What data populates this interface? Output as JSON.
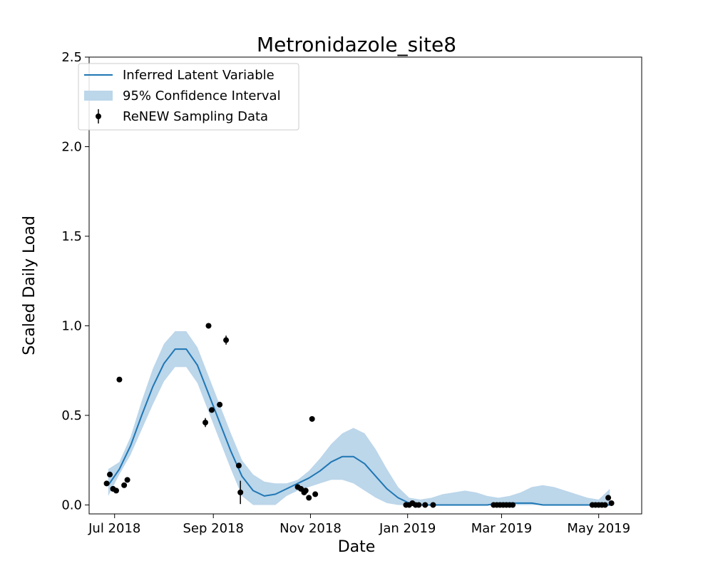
{
  "chart_data": {
    "type": "line",
    "title": "Metronidazole_site8",
    "xlabel": "Date",
    "ylabel": "Scaled Daily Load",
    "xlim": [
      "2018-06-15",
      "2019-05-28"
    ],
    "ylim": [
      -0.05,
      2.5
    ],
    "x_ticks": [
      {
        "date": "2018-07-01",
        "label": "Jul 2018"
      },
      {
        "date": "2018-09-01",
        "label": "Sep 2018"
      },
      {
        "date": "2018-11-01",
        "label": "Nov 2018"
      },
      {
        "date": "2019-01-01",
        "label": "Jan 2019"
      },
      {
        "date": "2019-03-01",
        "label": "Mar 2019"
      },
      {
        "date": "2019-05-01",
        "label": "May 2019"
      }
    ],
    "y_ticks": [
      {
        "value": 0.0,
        "label": "0.0"
      },
      {
        "value": 0.5,
        "label": "0.5"
      },
      {
        "value": 1.0,
        "label": "1.0"
      },
      {
        "value": 1.5,
        "label": "1.5"
      },
      {
        "value": 2.0,
        "label": "2.0"
      },
      {
        "value": 2.5,
        "label": "2.5"
      }
    ],
    "grid": false,
    "legend": {
      "placement": "upper-left",
      "entries": [
        "Inferred Latent Variable",
        "95% Confidence Interval",
        "ReNEW Sampling Data"
      ]
    },
    "colors": {
      "line": "#1f77b4",
      "band": "#bcd6ea",
      "points": "#000000"
    },
    "series": [
      {
        "name": "Inferred Latent Variable",
        "type": "line",
        "x": [
          "2018-06-27",
          "2018-07-04",
          "2018-07-11",
          "2018-07-18",
          "2018-07-25",
          "2018-08-01",
          "2018-08-08",
          "2018-08-15",
          "2018-08-22",
          "2018-08-29",
          "2018-09-05",
          "2018-09-12",
          "2018-09-19",
          "2018-09-26",
          "2018-10-03",
          "2018-10-10",
          "2018-10-17",
          "2018-10-24",
          "2018-10-31",
          "2018-11-07",
          "2018-11-14",
          "2018-11-21",
          "2018-11-28",
          "2018-12-05",
          "2018-12-12",
          "2018-12-19",
          "2018-12-26",
          "2019-01-02",
          "2019-01-09",
          "2019-01-16",
          "2019-01-23",
          "2019-01-30",
          "2019-02-06",
          "2019-02-13",
          "2019-02-20",
          "2019-02-27",
          "2019-03-06",
          "2019-03-13",
          "2019-03-20",
          "2019-03-27",
          "2019-04-03",
          "2019-04-10",
          "2019-04-17",
          "2019-04-24",
          "2019-05-01",
          "2019-05-08"
        ],
        "y": [
          0.11,
          0.2,
          0.33,
          0.5,
          0.66,
          0.79,
          0.87,
          0.87,
          0.78,
          0.62,
          0.46,
          0.3,
          0.16,
          0.08,
          0.05,
          0.06,
          0.09,
          0.12,
          0.15,
          0.19,
          0.24,
          0.27,
          0.27,
          0.23,
          0.16,
          0.09,
          0.04,
          0.01,
          0.0,
          0.0,
          0.0,
          0.0,
          0.0,
          0.0,
          0.0,
          0.01,
          0.01,
          0.01,
          0.01,
          0.0,
          0.0,
          0.0,
          0.0,
          0.0,
          0.0,
          0.0
        ]
      },
      {
        "name": "95% Confidence Interval",
        "type": "area",
        "x": [
          "2018-06-27",
          "2018-07-04",
          "2018-07-11",
          "2018-07-18",
          "2018-07-25",
          "2018-08-01",
          "2018-08-08",
          "2018-08-15",
          "2018-08-22",
          "2018-08-29",
          "2018-09-05",
          "2018-09-12",
          "2018-09-19",
          "2018-09-26",
          "2018-10-03",
          "2018-10-10",
          "2018-10-17",
          "2018-10-24",
          "2018-10-31",
          "2018-11-07",
          "2018-11-14",
          "2018-11-21",
          "2018-11-28",
          "2018-12-05",
          "2018-12-12",
          "2018-12-19",
          "2018-12-26",
          "2019-01-02",
          "2019-01-09",
          "2019-01-16",
          "2019-01-23",
          "2019-01-30",
          "2019-02-06",
          "2019-02-13",
          "2019-02-20",
          "2019-02-27",
          "2019-03-06",
          "2019-03-13",
          "2019-03-20",
          "2019-03-27",
          "2019-04-03",
          "2019-04-10",
          "2019-04-17",
          "2019-04-24",
          "2019-05-01",
          "2019-05-08"
        ],
        "lower": [
          0.05,
          0.17,
          0.28,
          0.42,
          0.56,
          0.69,
          0.77,
          0.77,
          0.68,
          0.52,
          0.36,
          0.2,
          0.05,
          0.0,
          0.0,
          0.0,
          0.05,
          0.08,
          0.1,
          0.12,
          0.14,
          0.14,
          0.12,
          0.08,
          0.04,
          0.01,
          0.0,
          0.0,
          0.0,
          0.0,
          0.0,
          0.0,
          0.0,
          0.0,
          0.0,
          0.0,
          0.0,
          0.0,
          0.0,
          0.0,
          0.0,
          0.0,
          0.0,
          0.0,
          0.0,
          0.0
        ],
        "upper": [
          0.2,
          0.24,
          0.38,
          0.58,
          0.76,
          0.9,
          0.97,
          0.97,
          0.88,
          0.72,
          0.56,
          0.4,
          0.25,
          0.17,
          0.13,
          0.12,
          0.12,
          0.14,
          0.19,
          0.26,
          0.34,
          0.4,
          0.43,
          0.4,
          0.31,
          0.2,
          0.1,
          0.04,
          0.03,
          0.04,
          0.06,
          0.07,
          0.08,
          0.07,
          0.05,
          0.04,
          0.05,
          0.07,
          0.1,
          0.11,
          0.1,
          0.08,
          0.06,
          0.04,
          0.03,
          0.09
        ]
      },
      {
        "name": "ReNEW Sampling Data",
        "type": "scatter",
        "x": [
          "2018-06-26",
          "2018-06-28",
          "2018-06-30",
          "2018-07-02",
          "2018-07-04",
          "2018-07-07",
          "2018-07-09",
          "2018-08-27",
          "2018-08-29",
          "2018-08-31",
          "2018-09-05",
          "2018-09-09",
          "2018-09-17",
          "2018-09-18",
          "2018-10-24",
          "2018-10-26",
          "2018-10-28",
          "2018-10-29",
          "2018-10-31",
          "2018-11-02",
          "2018-11-04",
          "2018-12-31",
          "2019-01-02",
          "2019-01-04",
          "2019-01-06",
          "2019-01-08",
          "2019-01-12",
          "2019-01-17",
          "2019-02-24",
          "2019-02-26",
          "2019-02-28",
          "2019-03-02",
          "2019-03-04",
          "2019-03-06",
          "2019-03-08",
          "2019-04-27",
          "2019-04-29",
          "2019-05-01",
          "2019-05-03",
          "2019-05-05",
          "2019-05-07",
          "2019-05-09"
        ],
        "y": [
          0.12,
          0.17,
          0.09,
          0.08,
          0.7,
          0.11,
          0.14,
          0.46,
          1.0,
          0.53,
          0.56,
          0.92,
          0.22,
          0.07,
          0.1,
          0.09,
          0.07,
          0.08,
          0.04,
          0.48,
          0.06,
          0.0,
          0.0,
          0.01,
          0.0,
          0.0,
          0.0,
          0.0,
          0.0,
          0.0,
          0.0,
          0.0,
          0.0,
          0.0,
          0.0,
          0.0,
          0.0,
          0.0,
          0.0,
          0.0,
          0.04,
          0.01
        ],
        "err": [
          0.015,
          0.015,
          0.01,
          0.01,
          0.01,
          0.01,
          0.01,
          0.025,
          0.01,
          0.015,
          0.015,
          0.025,
          0.01,
          0.065,
          0.01,
          0.01,
          0.01,
          0.01,
          0.01,
          0.01,
          0.01,
          0.005,
          0.005,
          0.005,
          0.005,
          0.005,
          0.005,
          0.005,
          0.005,
          0.005,
          0.005,
          0.005,
          0.005,
          0.005,
          0.005,
          0.005,
          0.005,
          0.005,
          0.005,
          0.005,
          0.01,
          0.005
        ]
      }
    ]
  }
}
